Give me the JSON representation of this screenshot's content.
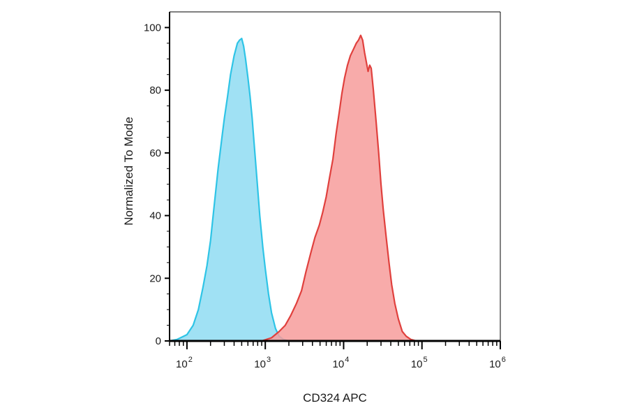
{
  "chart_data": {
    "type": "area",
    "xlabel": "CD324 APC",
    "ylabel": "Normalized To Mode",
    "x_scale": "log",
    "xlim": [
      60,
      1000000
    ],
    "ylim": [
      0,
      105
    ],
    "x_ticks": [
      {
        "value": 100,
        "base": "10",
        "exp": "2"
      },
      {
        "value": 1000,
        "base": "10",
        "exp": "3"
      },
      {
        "value": 10000,
        "base": "10",
        "exp": "4"
      },
      {
        "value": 100000,
        "base": "10",
        "exp": "5"
      },
      {
        "value": 1000000,
        "base": "10",
        "exp": "6"
      }
    ],
    "y_ticks": [
      0,
      20,
      40,
      60,
      80,
      100
    ],
    "grid": false,
    "legend": "none",
    "series": [
      {
        "color": "#2ec4e6",
        "fill": "#8fdcf2",
        "points": [
          [
            60,
            0
          ],
          [
            75,
            0.5
          ],
          [
            100,
            2
          ],
          [
            120,
            5
          ],
          [
            140,
            10
          ],
          [
            160,
            17
          ],
          [
            180,
            24
          ],
          [
            200,
            32
          ],
          [
            220,
            42
          ],
          [
            250,
            55
          ],
          [
            280,
            65
          ],
          [
            300,
            71
          ],
          [
            330,
            78
          ],
          [
            360,
            85
          ],
          [
            400,
            91
          ],
          [
            440,
            95
          ],
          [
            470,
            96
          ],
          [
            500,
            96.5
          ],
          [
            530,
            94
          ],
          [
            560,
            90
          ],
          [
            600,
            84
          ],
          [
            640,
            78
          ],
          [
            680,
            71
          ],
          [
            720,
            63
          ],
          [
            780,
            52
          ],
          [
            850,
            40
          ],
          [
            930,
            30
          ],
          [
            1000,
            23
          ],
          [
            1100,
            15
          ],
          [
            1200,
            9
          ],
          [
            1350,
            4
          ],
          [
            1500,
            1.5
          ],
          [
            1700,
            0.5
          ],
          [
            2000,
            0
          ],
          [
            1000000,
            0
          ]
        ]
      },
      {
        "color": "#e0403d",
        "fill": "#f79c9b",
        "points": [
          [
            60,
            0
          ],
          [
            900,
            0
          ],
          [
            1200,
            1
          ],
          [
            1500,
            3
          ],
          [
            1800,
            5
          ],
          [
            2100,
            8
          ],
          [
            2500,
            12
          ],
          [
            2900,
            16
          ],
          [
            3300,
            22
          ],
          [
            3800,
            28
          ],
          [
            4300,
            33
          ],
          [
            4900,
            37
          ],
          [
            5400,
            41
          ],
          [
            6000,
            46
          ],
          [
            6600,
            52
          ],
          [
            7300,
            58
          ],
          [
            8000,
            66
          ],
          [
            8800,
            73
          ],
          [
            9500,
            79
          ],
          [
            10300,
            84
          ],
          [
            11200,
            88
          ],
          [
            12200,
            91
          ],
          [
            13300,
            93
          ],
          [
            14500,
            95
          ],
          [
            15500,
            96
          ],
          [
            16500,
            97.5
          ],
          [
            17500,
            96
          ],
          [
            18500,
            92
          ],
          [
            19500,
            89
          ],
          [
            20500,
            86
          ],
          [
            21500,
            88
          ],
          [
            22500,
            87
          ],
          [
            24000,
            80
          ],
          [
            26000,
            70
          ],
          [
            28000,
            60
          ],
          [
            30000,
            50
          ],
          [
            32000,
            42
          ],
          [
            35000,
            33
          ],
          [
            38000,
            25
          ],
          [
            41000,
            18
          ],
          [
            45000,
            12
          ],
          [
            50000,
            7
          ],
          [
            56000,
            3
          ],
          [
            63000,
            1.5
          ],
          [
            72000,
            0.5
          ],
          [
            85000,
            0
          ],
          [
            1000000,
            0
          ]
        ]
      }
    ]
  }
}
